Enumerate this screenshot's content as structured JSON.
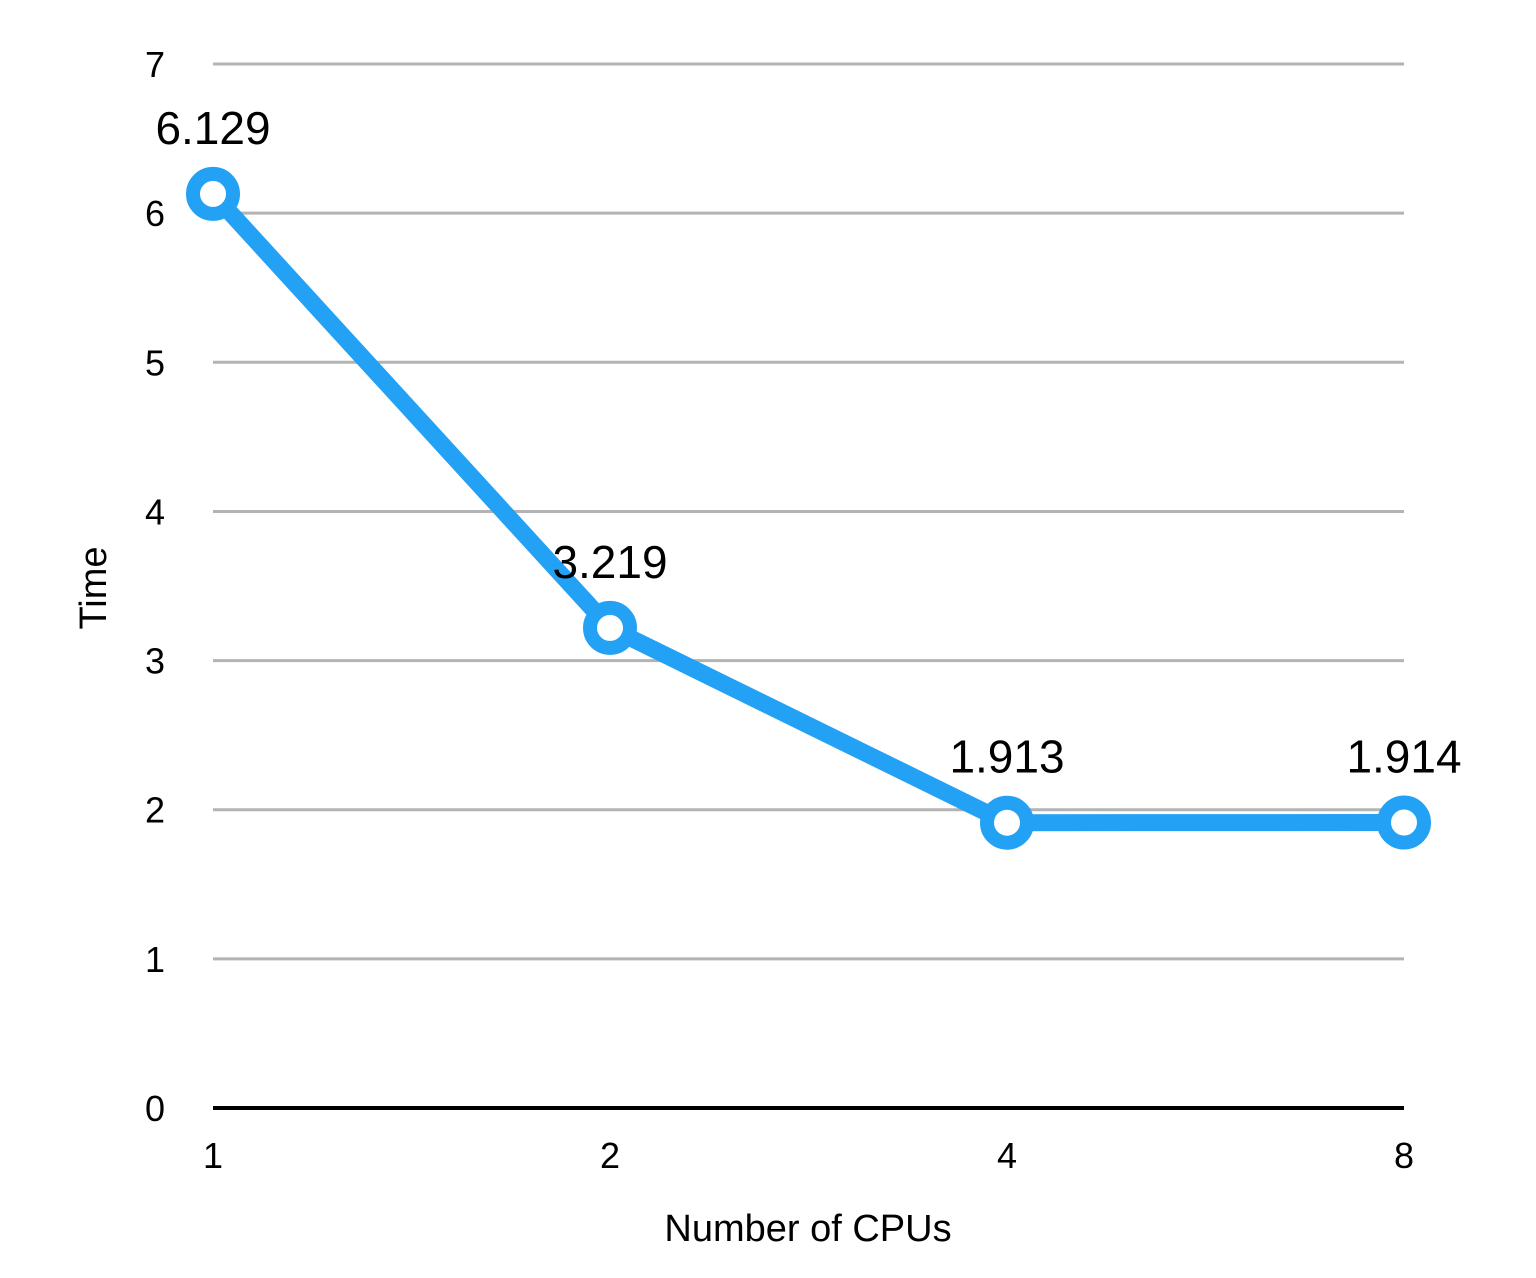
{
  "chart_data": {
    "type": "line",
    "title": "",
    "xlabel": "Number of CPUs",
    "ylabel": "Time",
    "categories": [
      "1",
      "2",
      "4",
      "8"
    ],
    "series": [
      {
        "values": [
          6.129,
          3.219,
          1.913,
          1.914
        ]
      }
    ],
    "data_labels": [
      "6.129",
      "3.219",
      "1.913",
      "1.914"
    ],
    "y_ticks": [
      "0",
      "1",
      "2",
      "3",
      "4",
      "5",
      "6",
      "7"
    ],
    "ylim": [
      0,
      7
    ],
    "grid": true,
    "legend": "none",
    "colors": {
      "series": "#22a1f5",
      "grid": "#b3b3b3",
      "axis": "#000000",
      "marker_fill": "#ffffff"
    }
  }
}
